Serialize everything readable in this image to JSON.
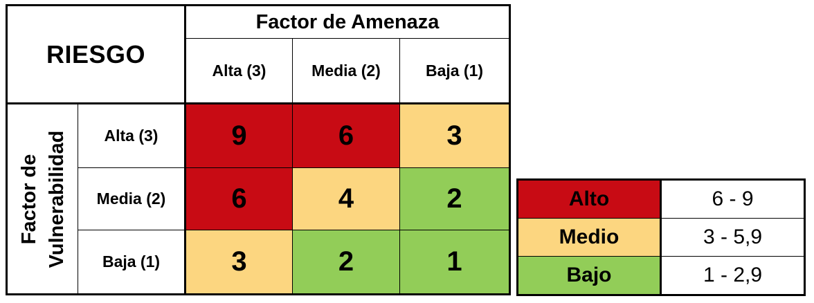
{
  "matrix": {
    "title": "RIESGO",
    "threat_axis_label": "Factor de Amenaza",
    "vulnerability_axis_label_line1": "Factor de",
    "vulnerability_axis_label_line2": "Vulnerabilidad",
    "columns": [
      "Alta (3)",
      "Media (2)",
      "Baja (1)"
    ],
    "rows": [
      {
        "label": "Alta (3)",
        "values": [
          "9",
          "6",
          "3"
        ],
        "levels": [
          "high",
          "high",
          "mid"
        ]
      },
      {
        "label": "Media (2)",
        "values": [
          "6",
          "4",
          "2"
        ],
        "levels": [
          "high",
          "mid",
          "low"
        ]
      },
      {
        "label": "Baja (1)",
        "values": [
          "3",
          "2",
          "1"
        ],
        "levels": [
          "mid",
          "low",
          "low"
        ]
      }
    ]
  },
  "legend": [
    {
      "label": "Alto",
      "range": "6 - 9",
      "level": "high"
    },
    {
      "label": "Medio",
      "range": "3 - 5,9",
      "level": "mid"
    },
    {
      "label": "Bajo",
      "range": "1 - 2,9",
      "level": "low"
    }
  ],
  "colors": {
    "high": "#c80b14",
    "mid": "#fcd680",
    "low": "#92cd58"
  }
}
